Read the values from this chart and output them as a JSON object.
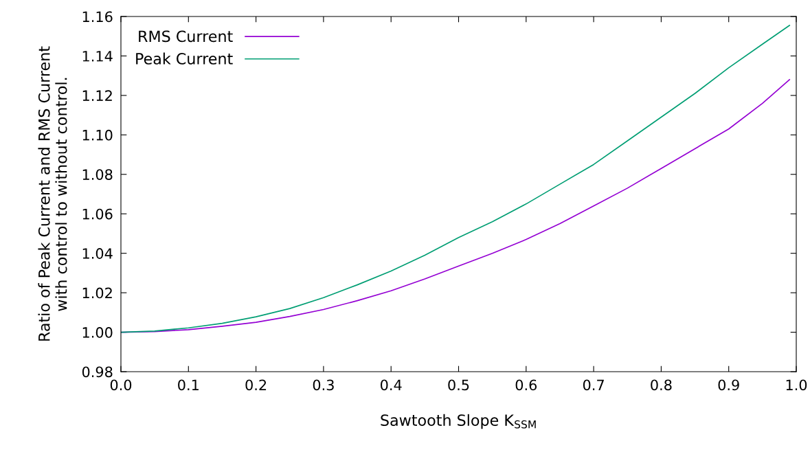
{
  "chart_data": {
    "type": "line",
    "xlabel": "Sawtooth Slope K$_{SSM}$",
    "ylabel": "Ratio of Peak Current and RMS Current\nwith control to without control.",
    "xlim": [
      0.0,
      1.0
    ],
    "xticks": [
      {
        "value": 0,
        "label": "0.0"
      },
      0.1,
      0.2,
      0.3,
      0.4,
      0.5,
      0.6,
      0.7,
      0.8,
      0.9,
      {
        "value": 1,
        "label": "1.0"
      }
    ],
    "ylim": [
      0.98,
      1.16
    ],
    "yticks": [
      0.98,
      {
        "value": 1.0,
        "label": "1.00"
      },
      1.02,
      1.04,
      1.06,
      1.08,
      {
        "value": 1.1,
        "label": "1.10"
      },
      1.12,
      1.14,
      1.16
    ],
    "grid": false,
    "legend": "top left",
    "marker": "none",
    "line_style": "solid",
    "series": [
      {
        "name": "RMS Current",
        "color": "#9400d3",
        "x": [
          0,
          0.05,
          0.1,
          0.15,
          0.2,
          0.25,
          0.3,
          0.35,
          0.4,
          0.45,
          0.5,
          0.55,
          0.6,
          0.65,
          0.7,
          0.75,
          0.8,
          0.85,
          0.9,
          0.95,
          0.99
        ],
        "values": [
          1.0,
          1.0003,
          1.0013,
          1.003,
          1.005,
          1.008,
          1.0115,
          1.016,
          1.021,
          1.027,
          1.0335,
          1.04,
          1.047,
          1.055,
          1.064,
          1.073,
          1.083,
          1.093,
          1.103,
          1.116,
          1.128
        ]
      },
      {
        "name": "Peak Current",
        "color": "#009e73",
        "x": [
          0,
          0.05,
          0.1,
          0.15,
          0.2,
          0.25,
          0.3,
          0.35,
          0.4,
          0.45,
          0.5,
          0.55,
          0.6,
          0.65,
          0.7,
          0.75,
          0.8,
          0.85,
          0.9,
          0.95,
          0.99
        ],
        "values": [
          1.0,
          1.0006,
          1.0022,
          1.0045,
          1.0078,
          1.012,
          1.0175,
          1.024,
          1.031,
          1.039,
          1.048,
          1.056,
          1.065,
          1.075,
          1.085,
          1.097,
          1.109,
          1.121,
          1.134,
          1.146,
          1.1555
        ]
      }
    ]
  }
}
